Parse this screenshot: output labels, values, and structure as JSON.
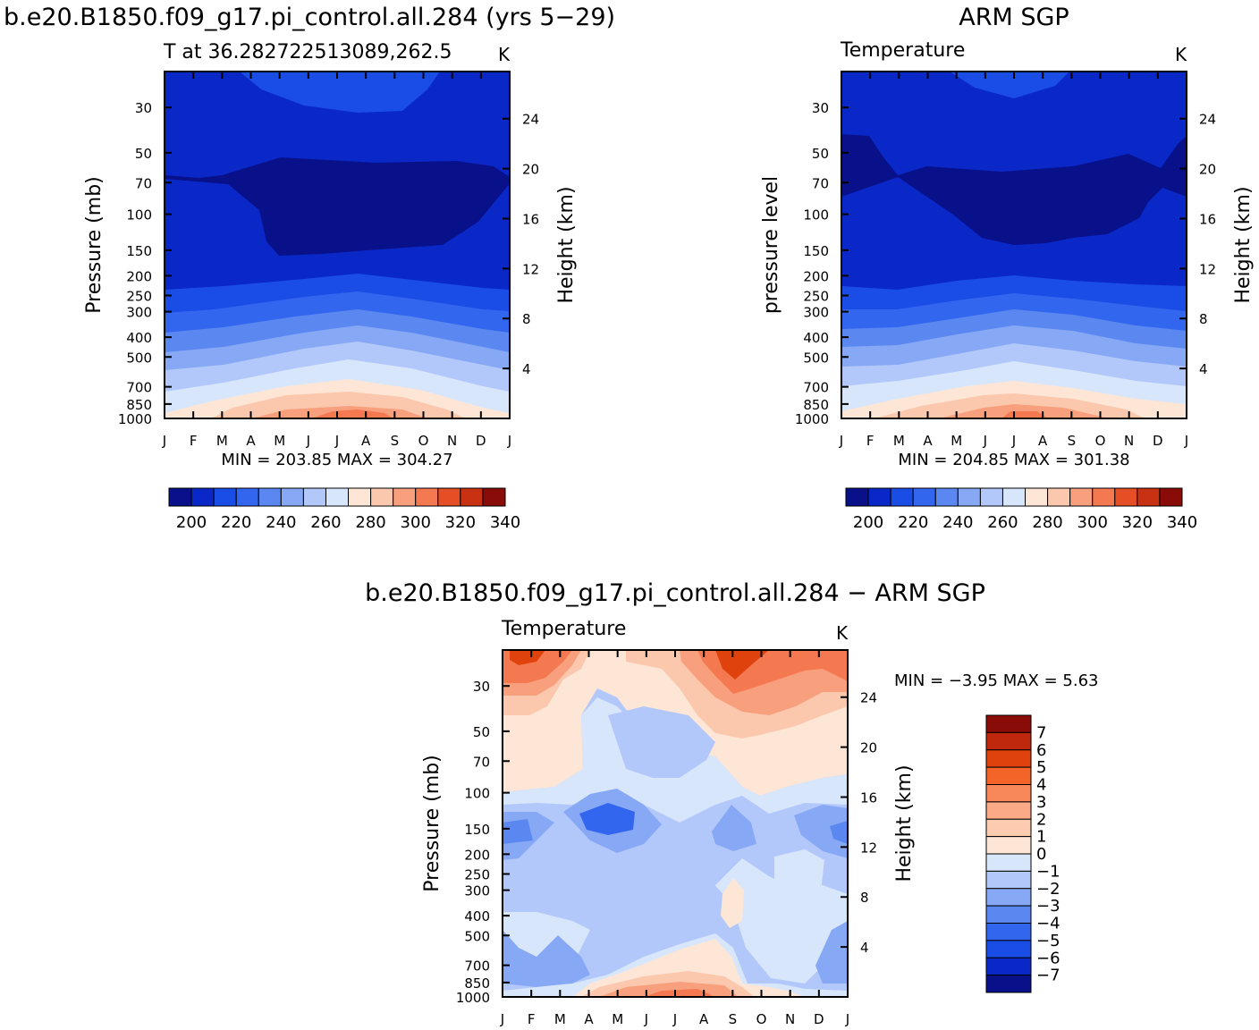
{
  "months": [
    "J",
    "F",
    "M",
    "A",
    "M",
    "J",
    "J",
    "A",
    "S",
    "O",
    "N",
    "D",
    "J"
  ],
  "pressure_ticks": [
    30,
    50,
    70,
    100,
    150,
    200,
    250,
    300,
    400,
    500,
    700,
    850,
    1000
  ],
  "height_ticks": [
    4,
    8,
    12,
    16,
    20,
    24
  ],
  "panels": [
    {
      "title": "b.e20.B1850.f09_g17.pi_control.all.284 (yrs 5−29)",
      "subtitle": "T at 36.282722513089,262.5",
      "units": "K",
      "ylabel_left": "Pressure (mb)",
      "ylabel_right": "Height (km)",
      "minmax": "MIN = 203.85 MAX = 304.27"
    },
    {
      "title": "ARM SGP",
      "subtitle": "Temperature",
      "units": "K",
      "ylabel_left": "pressure level",
      "ylabel_right": "Height (km)",
      "minmax": "MIN = 204.85 MAX = 301.38"
    },
    {
      "title": "b.e20.B1850.f09_g17.pi_control.all.284 − ARM SGP",
      "subtitle": "Temperature",
      "units": "K",
      "ylabel_left": "Pressure (mb)",
      "ylabel_right": "Height (km)",
      "minmax": "MIN = −3.95 MAX = 5.63"
    }
  ],
  "colorbar_temp": {
    "labels": [
      "200",
      "220",
      "240",
      "260",
      "280",
      "300",
      "320",
      "340"
    ],
    "colors": [
      "#08108a",
      "#0a28c8",
      "#1a4ce6",
      "#3366ee",
      "#5b88f0",
      "#86a8f5",
      "#b3c8fa",
      "#d8e6fb",
      "#fde6d6",
      "#fbc8ae",
      "#f8a07e",
      "#f47850",
      "#e64e26",
      "#c83212",
      "#8a0c08"
    ]
  },
  "colorbar_diff": {
    "labels": [
      "7",
      "6",
      "5",
      "4",
      "3",
      "2",
      "1",
      "0",
      "−1",
      "−2",
      "−3",
      "−4",
      "−5",
      "−6",
      "−7"
    ],
    "colors": [
      "#8a0c08",
      "#c0280e",
      "#e0420e",
      "#f46428",
      "#f8885a",
      "#fbaa88",
      "#fdcbb0",
      "#fde6d6",
      "#d8e6fb",
      "#b3c8fa",
      "#86a8f5",
      "#5b88f0",
      "#3366ee",
      "#1a4ce6",
      "#0a28c8",
      "#08108a"
    ]
  },
  "chart_data": [
    {
      "type": "heatmap",
      "title": "b.e20.B1850.f09_g17.pi_control.all.284 (yrs 5−29)",
      "subtitle": "T at 36.282722513089,262.5",
      "units": "K",
      "xlabel": "",
      "ylabel": "Pressure (mb)",
      "ylabel_right": "Height (km)",
      "x": [
        "J",
        "F",
        "M",
        "A",
        "M",
        "J",
        "J",
        "A",
        "S",
        "O",
        "N",
        "D",
        "J"
      ],
      "y": [
        30,
        50,
        70,
        100,
        150,
        200,
        250,
        300,
        400,
        500,
        700,
        850,
        1000
      ],
      "ylim": [
        1000,
        20
      ],
      "y_scale": "log",
      "contour_levels": [
        200,
        210,
        220,
        230,
        240,
        250,
        260,
        270,
        280,
        290,
        300,
        310,
        320,
        330,
        340
      ],
      "min": 203.85,
      "max": 304.27
    },
    {
      "type": "heatmap",
      "title": "ARM SGP",
      "subtitle": "Temperature",
      "units": "K",
      "xlabel": "",
      "ylabel": "pressure level",
      "ylabel_right": "Height (km)",
      "x": [
        "J",
        "F",
        "M",
        "A",
        "M",
        "J",
        "J",
        "A",
        "S",
        "O",
        "N",
        "D",
        "J"
      ],
      "y": [
        30,
        50,
        70,
        100,
        150,
        200,
        250,
        300,
        400,
        500,
        700,
        850,
        1000
      ],
      "ylim": [
        1000,
        20
      ],
      "y_scale": "log",
      "contour_levels": [
        200,
        210,
        220,
        230,
        240,
        250,
        260,
        270,
        280,
        290,
        300,
        310,
        320,
        330,
        340
      ],
      "min": 204.85,
      "max": 301.38
    },
    {
      "type": "heatmap",
      "title": "b.e20.B1850.f09_g17.pi_control.all.284 − ARM SGP",
      "subtitle": "Temperature",
      "units": "K",
      "xlabel": "",
      "ylabel": "Pressure (mb)",
      "ylabel_right": "Height (km)",
      "x": [
        "J",
        "F",
        "M",
        "A",
        "M",
        "J",
        "J",
        "A",
        "S",
        "O",
        "N",
        "D",
        "J"
      ],
      "y": [
        30,
        50,
        70,
        100,
        150,
        200,
        250,
        300,
        400,
        500,
        700,
        850,
        1000
      ],
      "ylim": [
        1000,
        20
      ],
      "y_scale": "log",
      "contour_levels": [
        -7,
        -6,
        -5,
        -4,
        -3,
        -2,
        -1,
        0,
        1,
        2,
        3,
        4,
        5,
        6,
        7
      ],
      "min": -3.95,
      "max": 5.63
    }
  ]
}
